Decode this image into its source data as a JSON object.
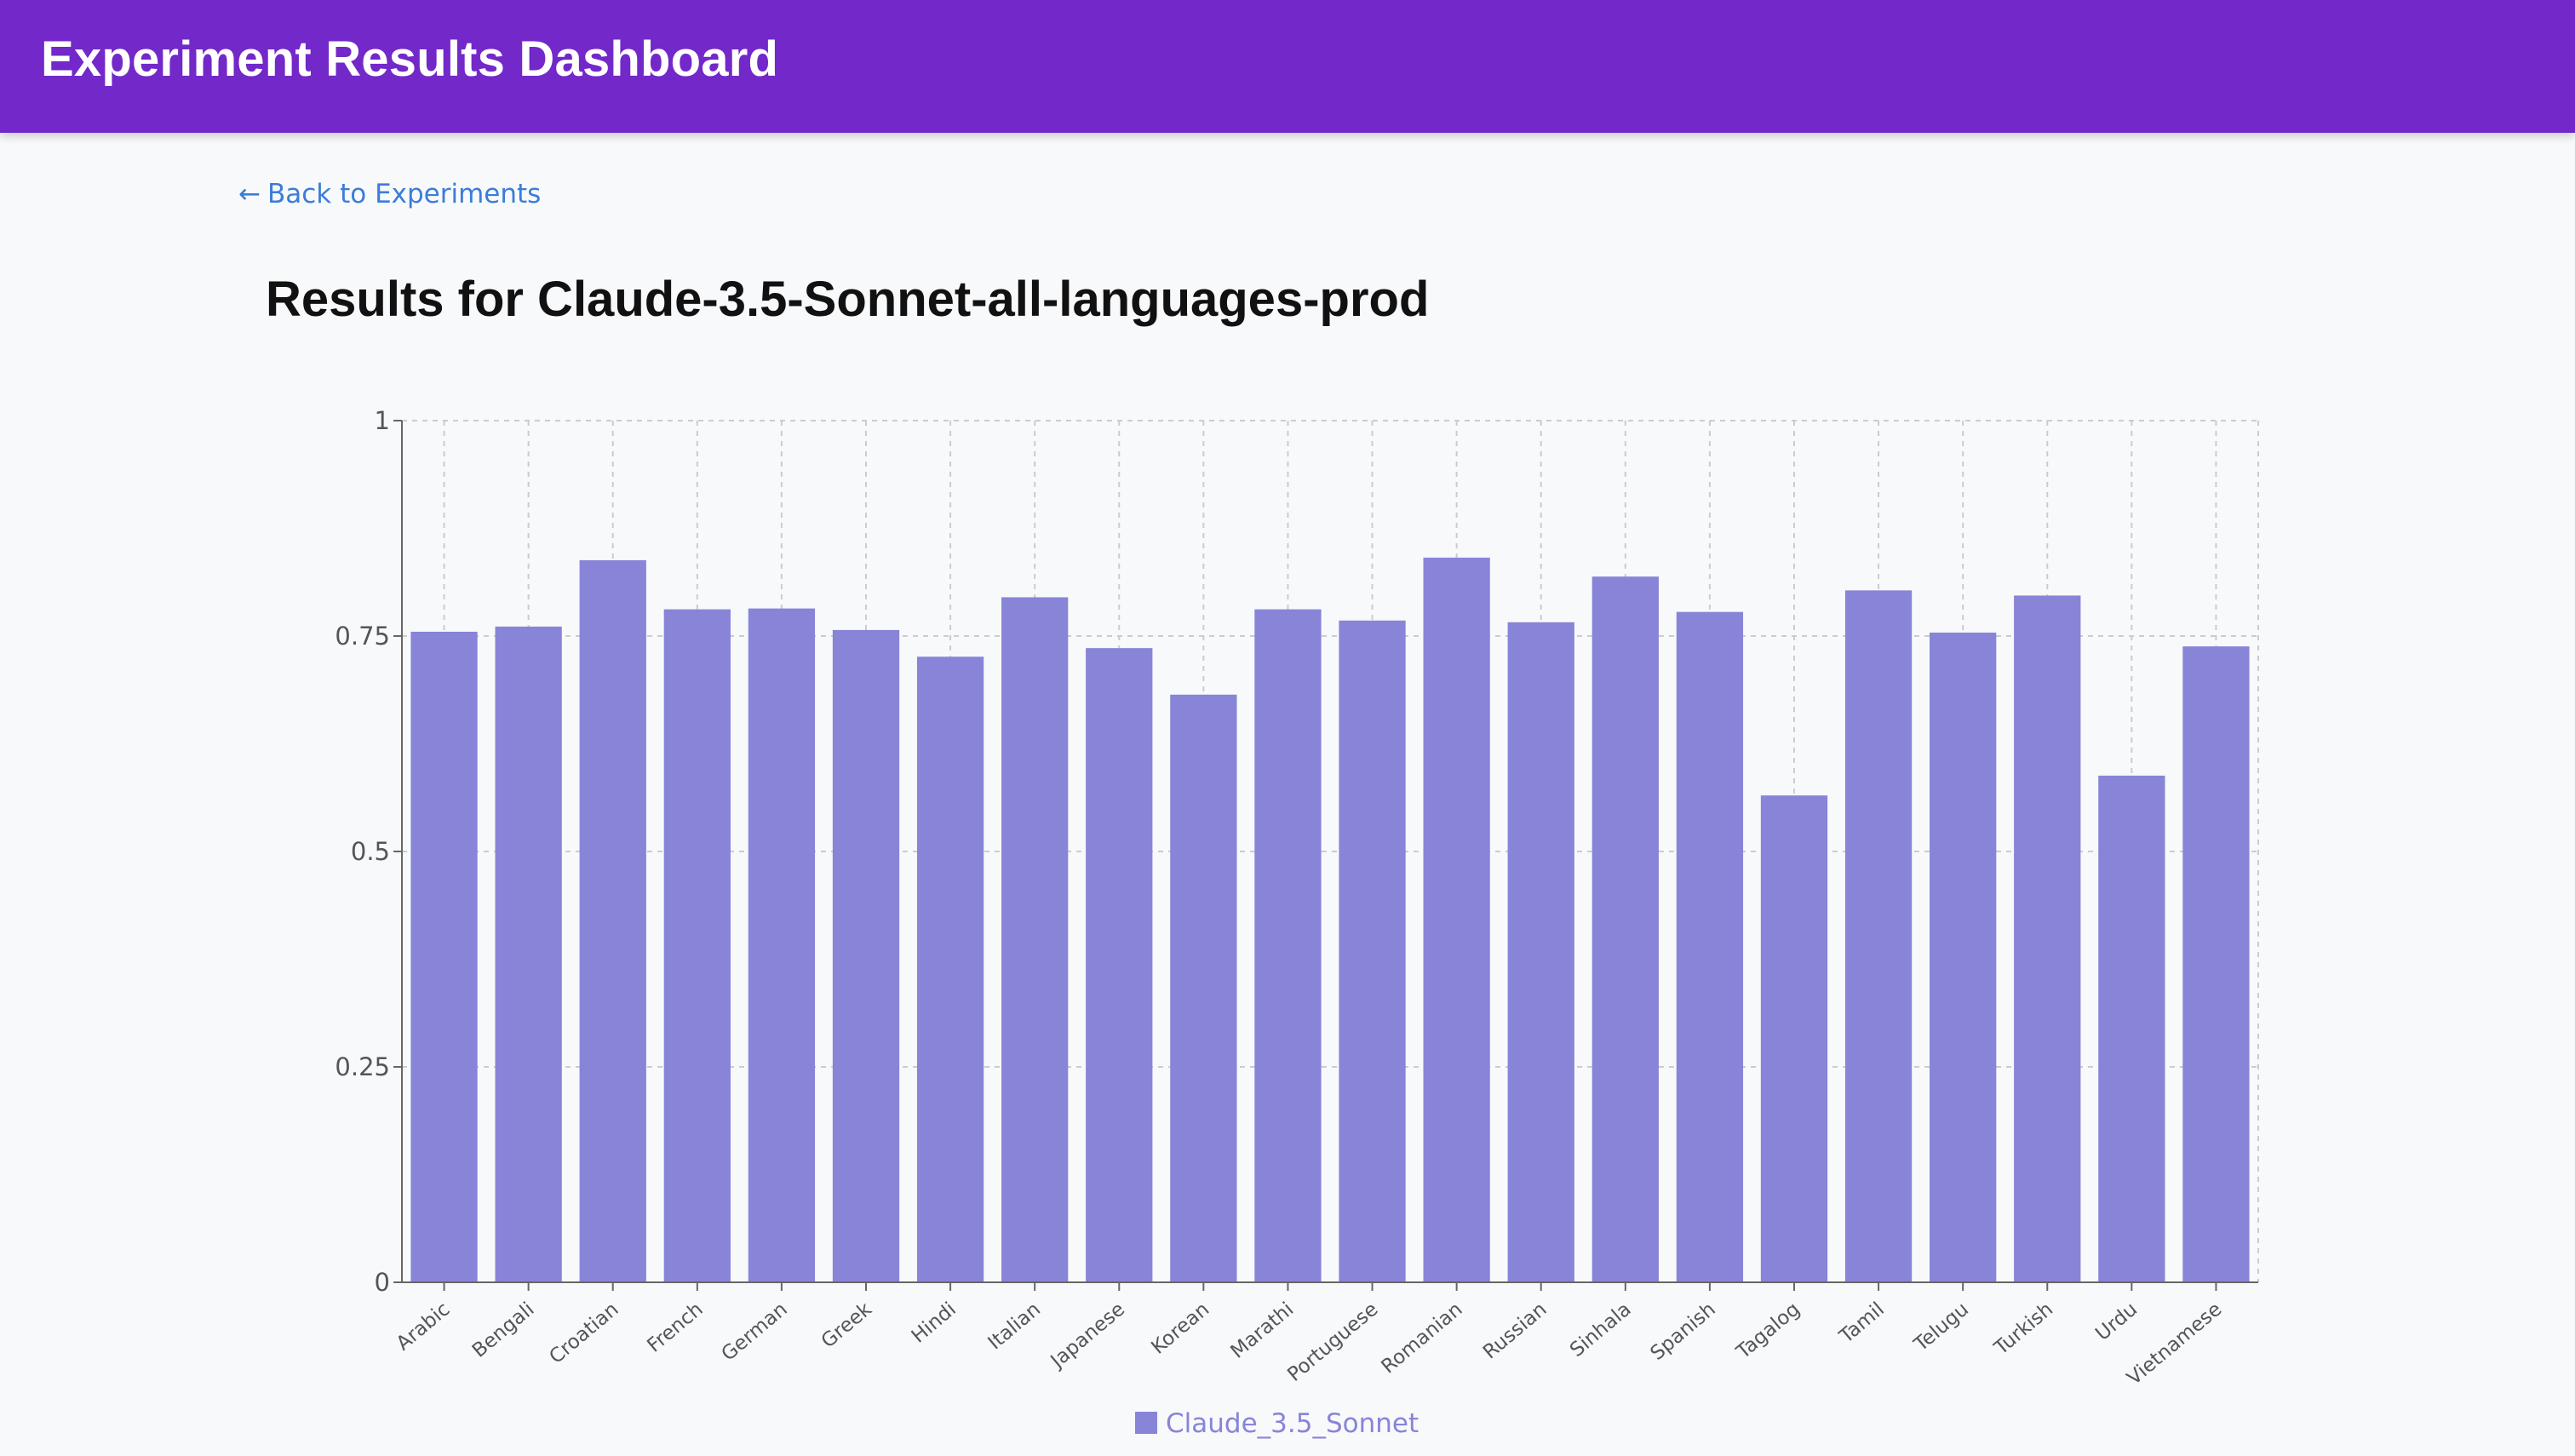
{
  "header": {
    "title": "Experiment Results Dashboard"
  },
  "nav": {
    "back_arrow": "←",
    "back_label": "Back to Experiments"
  },
  "page": {
    "title": "Results for Claude-3.5-Sonnet-all-languages-prod"
  },
  "colors": {
    "header_bg": "#7328c9",
    "bar": "#8884d8",
    "link": "#3b7dd8"
  },
  "chart_data": {
    "type": "bar",
    "categories": [
      "Arabic",
      "Bengali",
      "Croatian",
      "French",
      "German",
      "Greek",
      "Hindi",
      "Italian",
      "Japanese",
      "Korean",
      "Marathi",
      "Portuguese",
      "Romanian",
      "Russian",
      "Sinhala",
      "Spanish",
      "Tagalog",
      "Tamil",
      "Telugu",
      "Turkish",
      "Urdu",
      "Vietnamese"
    ],
    "series": [
      {
        "name": "Claude_3.5_Sonnet",
        "values": [
          0.755,
          0.761,
          0.838,
          0.781,
          0.782,
          0.757,
          0.726,
          0.795,
          0.736,
          0.682,
          0.781,
          0.768,
          0.841,
          0.766,
          0.819,
          0.778,
          0.565,
          0.803,
          0.754,
          0.797,
          0.588,
          0.738
        ]
      }
    ],
    "yticks": [
      "0",
      "0.25",
      "0.5",
      "0.75",
      "1"
    ],
    "ylim": [
      0,
      1
    ],
    "grid": true,
    "legend": "bottom-center"
  }
}
